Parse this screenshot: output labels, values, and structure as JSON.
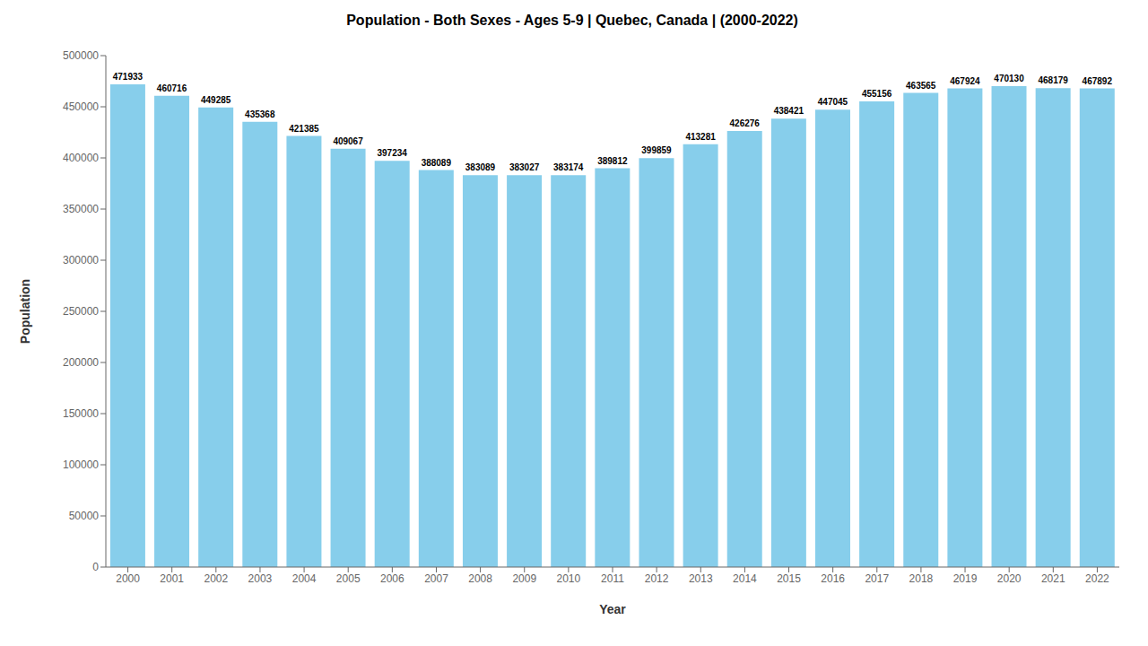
{
  "chart_data": {
    "type": "bar",
    "title": "Population - Both Sexes - Ages 5-9 | Quebec, Canada |  (2000-2022)",
    "xlabel": "Year",
    "ylabel": "Population",
    "categories": [
      "2000",
      "2001",
      "2002",
      "2003",
      "2004",
      "2005",
      "2006",
      "2007",
      "2008",
      "2009",
      "2010",
      "2011",
      "2012",
      "2013",
      "2014",
      "2015",
      "2016",
      "2017",
      "2018",
      "2019",
      "2020",
      "2021",
      "2022"
    ],
    "values": [
      471933,
      460716,
      449285,
      435368,
      421385,
      409067,
      397234,
      388089,
      383089,
      383027,
      383174,
      389812,
      399859,
      413281,
      426276,
      438421,
      447045,
      455156,
      463565,
      467924,
      470130,
      468179,
      467892
    ],
    "color": "#87CEEB",
    "ylim": [
      0,
      500000
    ],
    "yticks": [
      0,
      50000,
      100000,
      150000,
      200000,
      250000,
      300000,
      350000,
      400000,
      450000,
      500000
    ],
    "grid": false,
    "data_labels": true
  }
}
